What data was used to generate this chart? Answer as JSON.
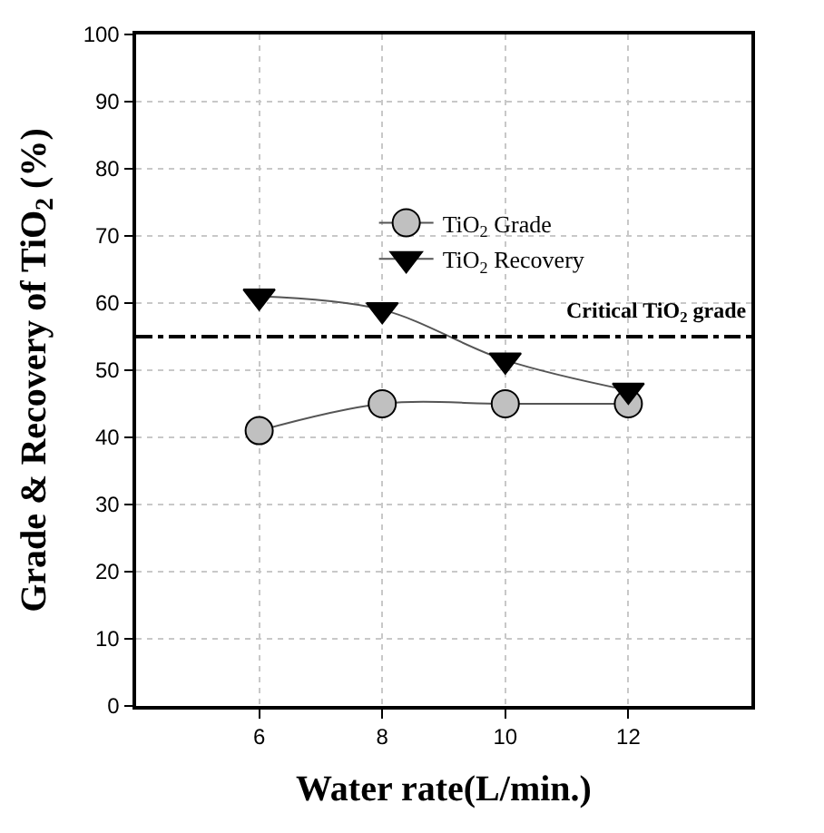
{
  "chart_data": {
    "type": "line",
    "xlabel": "Water rate(L/min.)",
    "ylabel": "Grade & Recovery of TiO$_{2}$ (%)",
    "x": [
      6,
      8,
      10,
      12
    ],
    "series": [
      {
        "name": "TiO$_{2}$ Grade",
        "color": "#c0c0c0",
        "marker": "circle",
        "values": [
          41,
          45,
          45,
          45
        ]
      },
      {
        "name": "TiO$_{2}$ Recovery",
        "color": "#000000",
        "marker": "triangle",
        "values": [
          61,
          59,
          51.5,
          47
        ]
      }
    ],
    "xlim": [
      4,
      14
    ],
    "xticks": [
      6,
      8,
      10,
      12
    ],
    "ylim": [
      0,
      100
    ],
    "yticks": [
      0,
      10,
      20,
      30,
      40,
      50,
      60,
      70,
      80,
      90,
      100
    ],
    "grid": true,
    "legend": "top",
    "line_style": "solid",
    "ref_lines": [
      {
        "axis": "y",
        "value": 55,
        "label": "Critical TiO$_{2}$ grade",
        "line_style": "dashdot",
        "color": "#000000"
      }
    ]
  }
}
